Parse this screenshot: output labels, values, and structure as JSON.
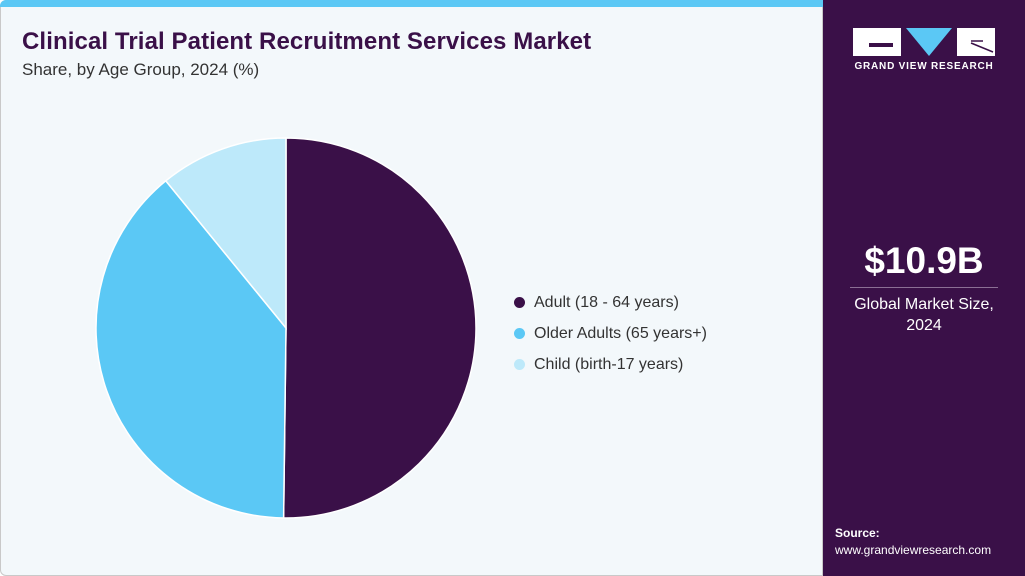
{
  "header": {
    "title": "Clinical Trial Patient Recruitment Services Market",
    "subtitle": "Share, by Age Group, 2024 (%)"
  },
  "chart_data": {
    "type": "pie",
    "title": "Clinical Trial Patient Recruitment Services Market",
    "subtitle": "Share, by Age Group, 2024 (%)",
    "categories": [
      "Adult (18 - 64 years)",
      "Older Adults (65 years+)",
      "Child (birth-17 years)"
    ],
    "values": [
      50.2,
      38.9,
      10.9
    ],
    "colors": [
      "#3a1048",
      "#5bc8f5",
      "#bde9fa"
    ],
    "legend_position": "right"
  },
  "sidebar": {
    "logo_text": "GRAND VIEW RESEARCH",
    "market_size": "$10.9B",
    "market_label_line1": "Global Market Size,",
    "market_label_line2": "2024",
    "source_label": "Source:",
    "source_url": "www.grandviewresearch.com"
  }
}
